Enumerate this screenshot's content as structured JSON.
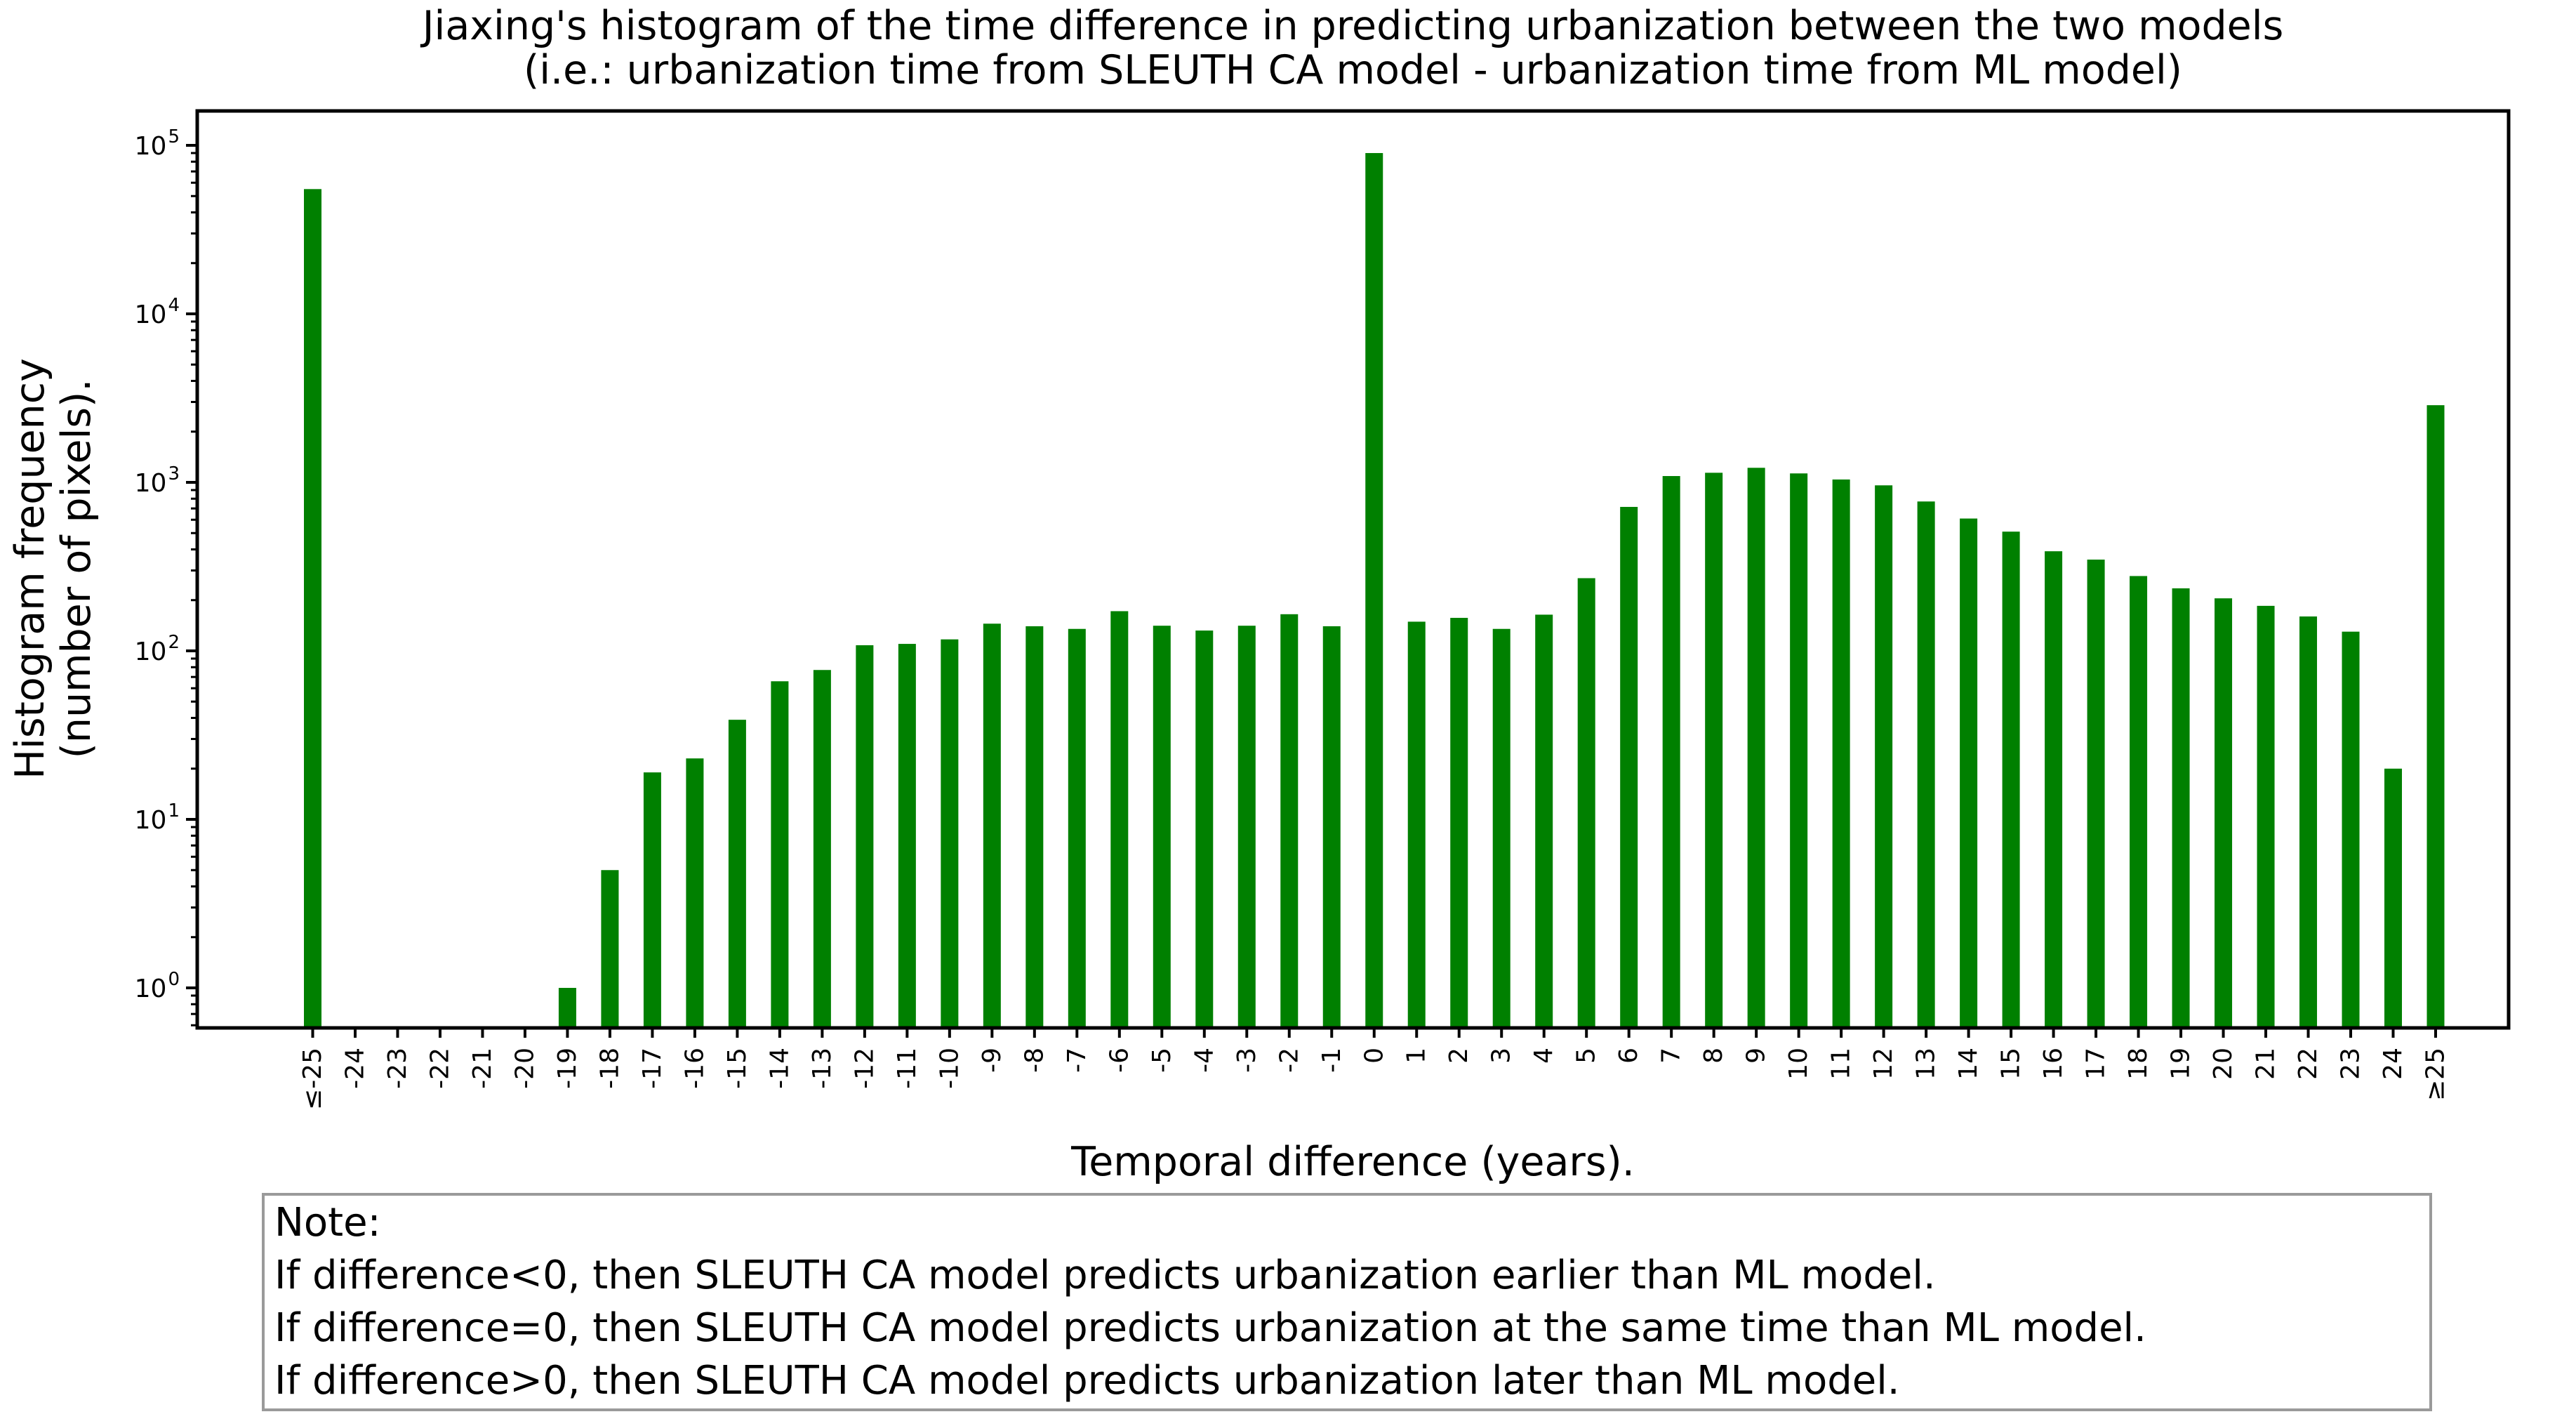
{
  "title": {
    "line1": "Jiaxing's histogram of the time difference in predicting urbanization between the two models",
    "line2": "(i.e.: urbanization time from SLEUTH CA model - urbanization time from ML model)"
  },
  "axes": {
    "ylabel_line1": "Histogram frequency",
    "ylabel_line2": "(number of pixels).",
    "xlabel": "Temporal difference (years)."
  },
  "note": {
    "heading": "Note:",
    "line1": "If difference<0, then SLEUTH CA model predicts urbanization earlier than ML model.",
    "line2": "If difference=0, then SLEUTH CA model predicts urbanization at the same time than ML model.",
    "line3": "If difference>0, then SLEUTH CA model predicts urbanization later than ML model."
  },
  "colors": {
    "bar": "#008000",
    "axis": "#000000",
    "note_border": "#9a9a9a",
    "background": "#ffffff"
  },
  "chart_data": {
    "type": "bar",
    "title": "Jiaxing's histogram of the time difference in predicting urbanization between the two models (i.e.: urbanization time from SLEUTH CA model - urbanization time from ML model)",
    "xlabel": "Temporal difference (years).",
    "ylabel": "Histogram frequency (number of pixels).",
    "yscale": "log",
    "grid": false,
    "legend": "none",
    "ylim": [
      0.58,
      160000
    ],
    "ytick_exponents": [
      0,
      1,
      2,
      3,
      4,
      5
    ],
    "categories": [
      "≤-25",
      "-24",
      "-23",
      "-22",
      "-21",
      "-20",
      "-19",
      "-18",
      "-17",
      "-16",
      "-15",
      "-14",
      "-13",
      "-12",
      "-11",
      "-10",
      "-9",
      "-8",
      "-7",
      "-6",
      "-5",
      "-4",
      "-3",
      "-2",
      "-1",
      "0",
      "1",
      "2",
      "3",
      "4",
      "5",
      "6",
      "7",
      "8",
      "9",
      "10",
      "11",
      "12",
      "13",
      "14",
      "15",
      "16",
      "17",
      "18",
      "19",
      "20",
      "21",
      "22",
      "23",
      "24",
      "≥25"
    ],
    "values": [
      55000,
      0,
      0,
      0,
      0,
      0,
      1,
      5,
      19,
      23,
      39,
      66,
      77,
      108,
      110,
      117,
      145,
      140,
      135,
      172,
      141,
      132,
      141,
      165,
      140,
      90000,
      149,
      157,
      135,
      164,
      270,
      715,
      1090,
      1140,
      1220,
      1130,
      1040,
      960,
      770,
      610,
      510,
      390,
      348,
      278,
      235,
      205,
      185,
      160,
      130,
      20,
      2870
    ]
  }
}
